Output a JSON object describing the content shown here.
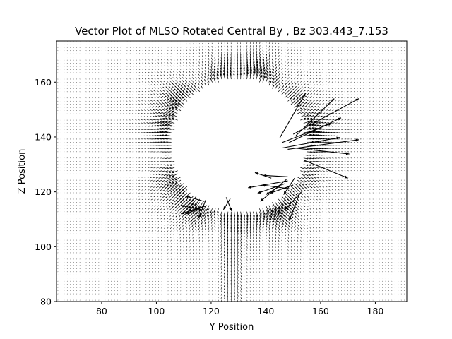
{
  "chart_data": {
    "type": "quiver",
    "title": "Vector Plot of MLSO Rotated Central By , Bz 303.443_7.153",
    "xlabel": "Y Position",
    "ylabel": "Z Position",
    "xlim": [
      63.5,
      191.5
    ],
    "ylim": [
      80,
      175
    ],
    "xticks": [
      80,
      100,
      120,
      140,
      160,
      180
    ],
    "yticks": [
      80,
      100,
      120,
      140,
      160
    ],
    "grid": false,
    "legend": "none",
    "colors": {
      "arrow": "#000000",
      "background": "#ffffff",
      "axes": "#000000"
    },
    "field": {
      "grid_spacing": 1.15,
      "occulting_disk": {
        "center_y": 130.0,
        "center_z": 137.0,
        "radius": 24.0,
        "description": "blank central region"
      },
      "features": [
        {
          "kind": "dense ring of radial vectors around the disk edge",
          "center_y": 130.0,
          "center_z": 137.0,
          "peak_radius": 26.0
        },
        {
          "kind": "strong downward jet below the disk",
          "y": 127.5,
          "z_range": [
            80,
            112
          ]
        },
        {
          "kind": "long outliers on right limb",
          "y_range": [
            148,
            175
          ],
          "z_range": [
            124,
            155
          ]
        }
      ],
      "sample_vectors": [
        {
          "y": 148.0,
          "z": 135.5,
          "u": 26.0,
          "v": 3.5
        },
        {
          "y": 150.0,
          "z": 141.0,
          "u": 24.0,
          "v": 13.0
        },
        {
          "y": 146.0,
          "z": 136.0,
          "u": 21.0,
          "v": 3.8
        },
        {
          "y": 150.0,
          "z": 136.0,
          "u": 20.5,
          "v": -2.2
        },
        {
          "y": 151.0,
          "z": 140.5,
          "u": 14.0,
          "v": 13.5
        },
        {
          "y": 154.0,
          "z": 131.5,
          "u": 16.0,
          "v": -6.5
        },
        {
          "y": 145.0,
          "z": 139.5,
          "u": 9.5,
          "v": 16.5
        },
        {
          "y": 146.0,
          "z": 138.0,
          "u": 18.0,
          "v": 7.0
        },
        {
          "y": 148.5,
          "z": 138.0,
          "u": 19.0,
          "v": 9.0
        },
        {
          "y": 148.0,
          "z": 124.0,
          "u": -14.5,
          "v": -2.5
        },
        {
          "y": 147.0,
          "z": 123.0,
          "u": -10.0,
          "v": -3.5
        },
        {
          "y": 149.5,
          "z": 121.0,
          "u": -11.0,
          "v": 1.5
        },
        {
          "y": 150.0,
          "z": 122.5,
          "u": -8.5,
          "v": -3.0
        },
        {
          "y": 148.0,
          "z": 125.5,
          "u": -9.0,
          "v": 0.5
        },
        {
          "y": 147.5,
          "z": 124.5,
          "u": -9.5,
          "v": -8.0
        },
        {
          "y": 150.5,
          "z": 125.0,
          "u": -4.0,
          "v": -6.0
        },
        {
          "y": 142.0,
          "z": 125.0,
          "u": -6.0,
          "v": 2.0
        },
        {
          "y": 145.0,
          "z": 122.0,
          "u": -5.0,
          "v": -3.0
        },
        {
          "y": 153.0,
          "z": 120.0,
          "u": -6.0,
          "v": -6.5
        },
        {
          "y": 152.0,
          "z": 118.5,
          "u": -3.5,
          "v": -9.0
        },
        {
          "y": 118.5,
          "z": 115.0,
          "u": -9.5,
          "v": -3.0
        },
        {
          "y": 117.0,
          "z": 114.5,
          "u": -6.0,
          "v": -2.5
        },
        {
          "y": 117.5,
          "z": 116.5,
          "u": -7.0,
          "v": 2.0
        },
        {
          "y": 118.0,
          "z": 117.0,
          "u": -2.5,
          "v": -6.5
        },
        {
          "y": 116.5,
          "z": 113.5,
          "u": -7.5,
          "v": 1.5
        },
        {
          "y": 125.5,
          "z": 118.0,
          "u": 2.0,
          "v": -5.0
        },
        {
          "y": 127.0,
          "z": 117.5,
          "u": -2.5,
          "v": -4.0
        }
      ]
    }
  }
}
